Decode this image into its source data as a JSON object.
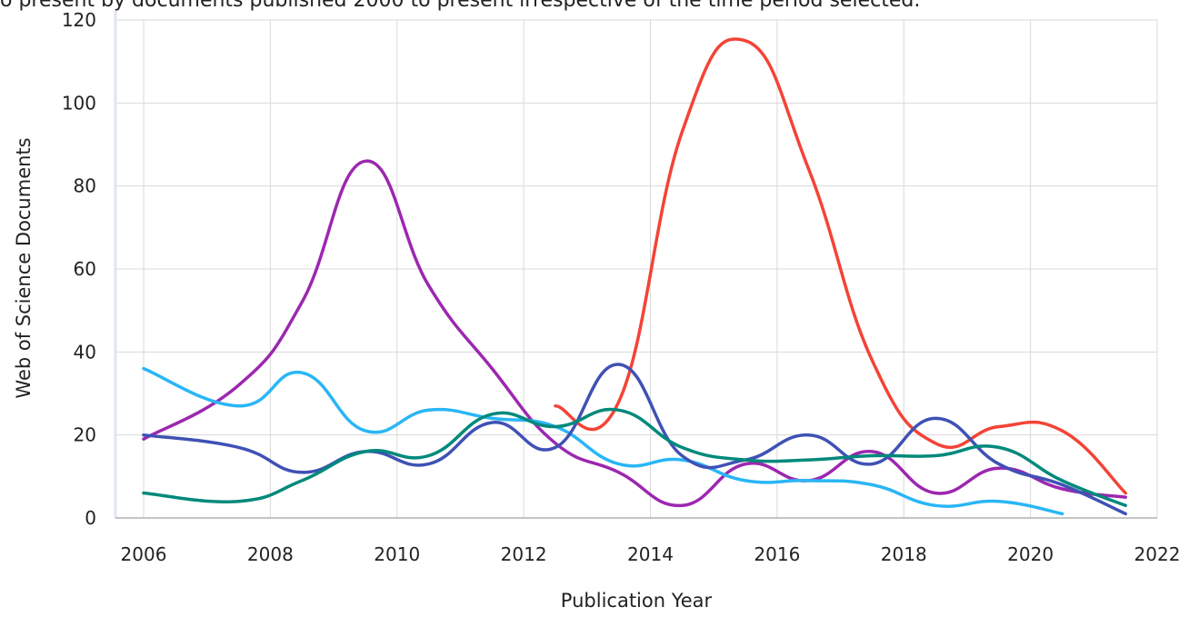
{
  "caption": "o present by documents published 2000 to present irrespective of the time period selected.",
  "chart_data": {
    "type": "line",
    "title": "",
    "xlabel": "Publication Year",
    "ylabel": "Web of Science Documents",
    "xlim": [
      2006,
      2022
    ],
    "ylim": [
      0,
      120
    ],
    "x_ticks": [
      2006,
      2008,
      2010,
      2012,
      2014,
      2016,
      2018,
      2020,
      2022
    ],
    "y_ticks": [
      0,
      20,
      40,
      60,
      80,
      100,
      120
    ],
    "grid": true,
    "legend": "none",
    "series": [
      {
        "color": "#f44336",
        "x": [
          2012.5,
          2013.5,
          2014.5,
          2015.5,
          2016.5,
          2017.5,
          2018.5,
          2019.5,
          2020.5,
          2021.5
        ],
        "y": [
          27,
          28,
          93,
          115,
          84,
          38,
          18,
          22,
          21,
          6
        ]
      },
      {
        "color": "#9c27b0",
        "x": [
          2006,
          2007.5,
          2008.5,
          2009.5,
          2010.5,
          2011.5,
          2012.5,
          2013.5,
          2014.5,
          2015.5,
          2016.5,
          2017.5,
          2018.5,
          2019.5,
          2020.5,
          2021.5
        ],
        "y": [
          19,
          32,
          52,
          86,
          56,
          36,
          18,
          11,
          3,
          13,
          9,
          16,
          6,
          12,
          7,
          5
        ]
      },
      {
        "color": "#29b6f6",
        "x": [
          2006,
          2007.5,
          2008.5,
          2009.5,
          2010.5,
          2011.5,
          2012.5,
          2013.5,
          2014.5,
          2015.5,
          2016.5,
          2017.5,
          2018.5,
          2019.5,
          2020.5
        ],
        "y": [
          36,
          27,
          35,
          21,
          26,
          24,
          22,
          13,
          14,
          9,
          9,
          8,
          3,
          4,
          1
        ]
      },
      {
        "color": "#3f51b5",
        "x": [
          2006,
          2007.5,
          2008.5,
          2009.5,
          2010.5,
          2011.5,
          2012.5,
          2013.5,
          2014.5,
          2015.5,
          2016.5,
          2017.5,
          2018.5,
          2019.5,
          2020.5,
          2021.5
        ],
        "y": [
          20,
          17,
          11,
          16,
          13,
          23,
          17,
          37,
          15,
          14,
          20,
          13,
          24,
          13,
          8,
          1
        ]
      },
      {
        "color": "#00897b",
        "x": [
          2006,
          2007.5,
          2008.5,
          2009.5,
          2010.5,
          2011.5,
          2012.5,
          2013.5,
          2014.5,
          2015.5,
          2016.5,
          2017.5,
          2018.5,
          2019.5,
          2020.5,
          2021.5
        ],
        "y": [
          6,
          4,
          9,
          16,
          15,
          25,
          22,
          26,
          17,
          14,
          14,
          15,
          15,
          17,
          9,
          3
        ]
      }
    ]
  }
}
